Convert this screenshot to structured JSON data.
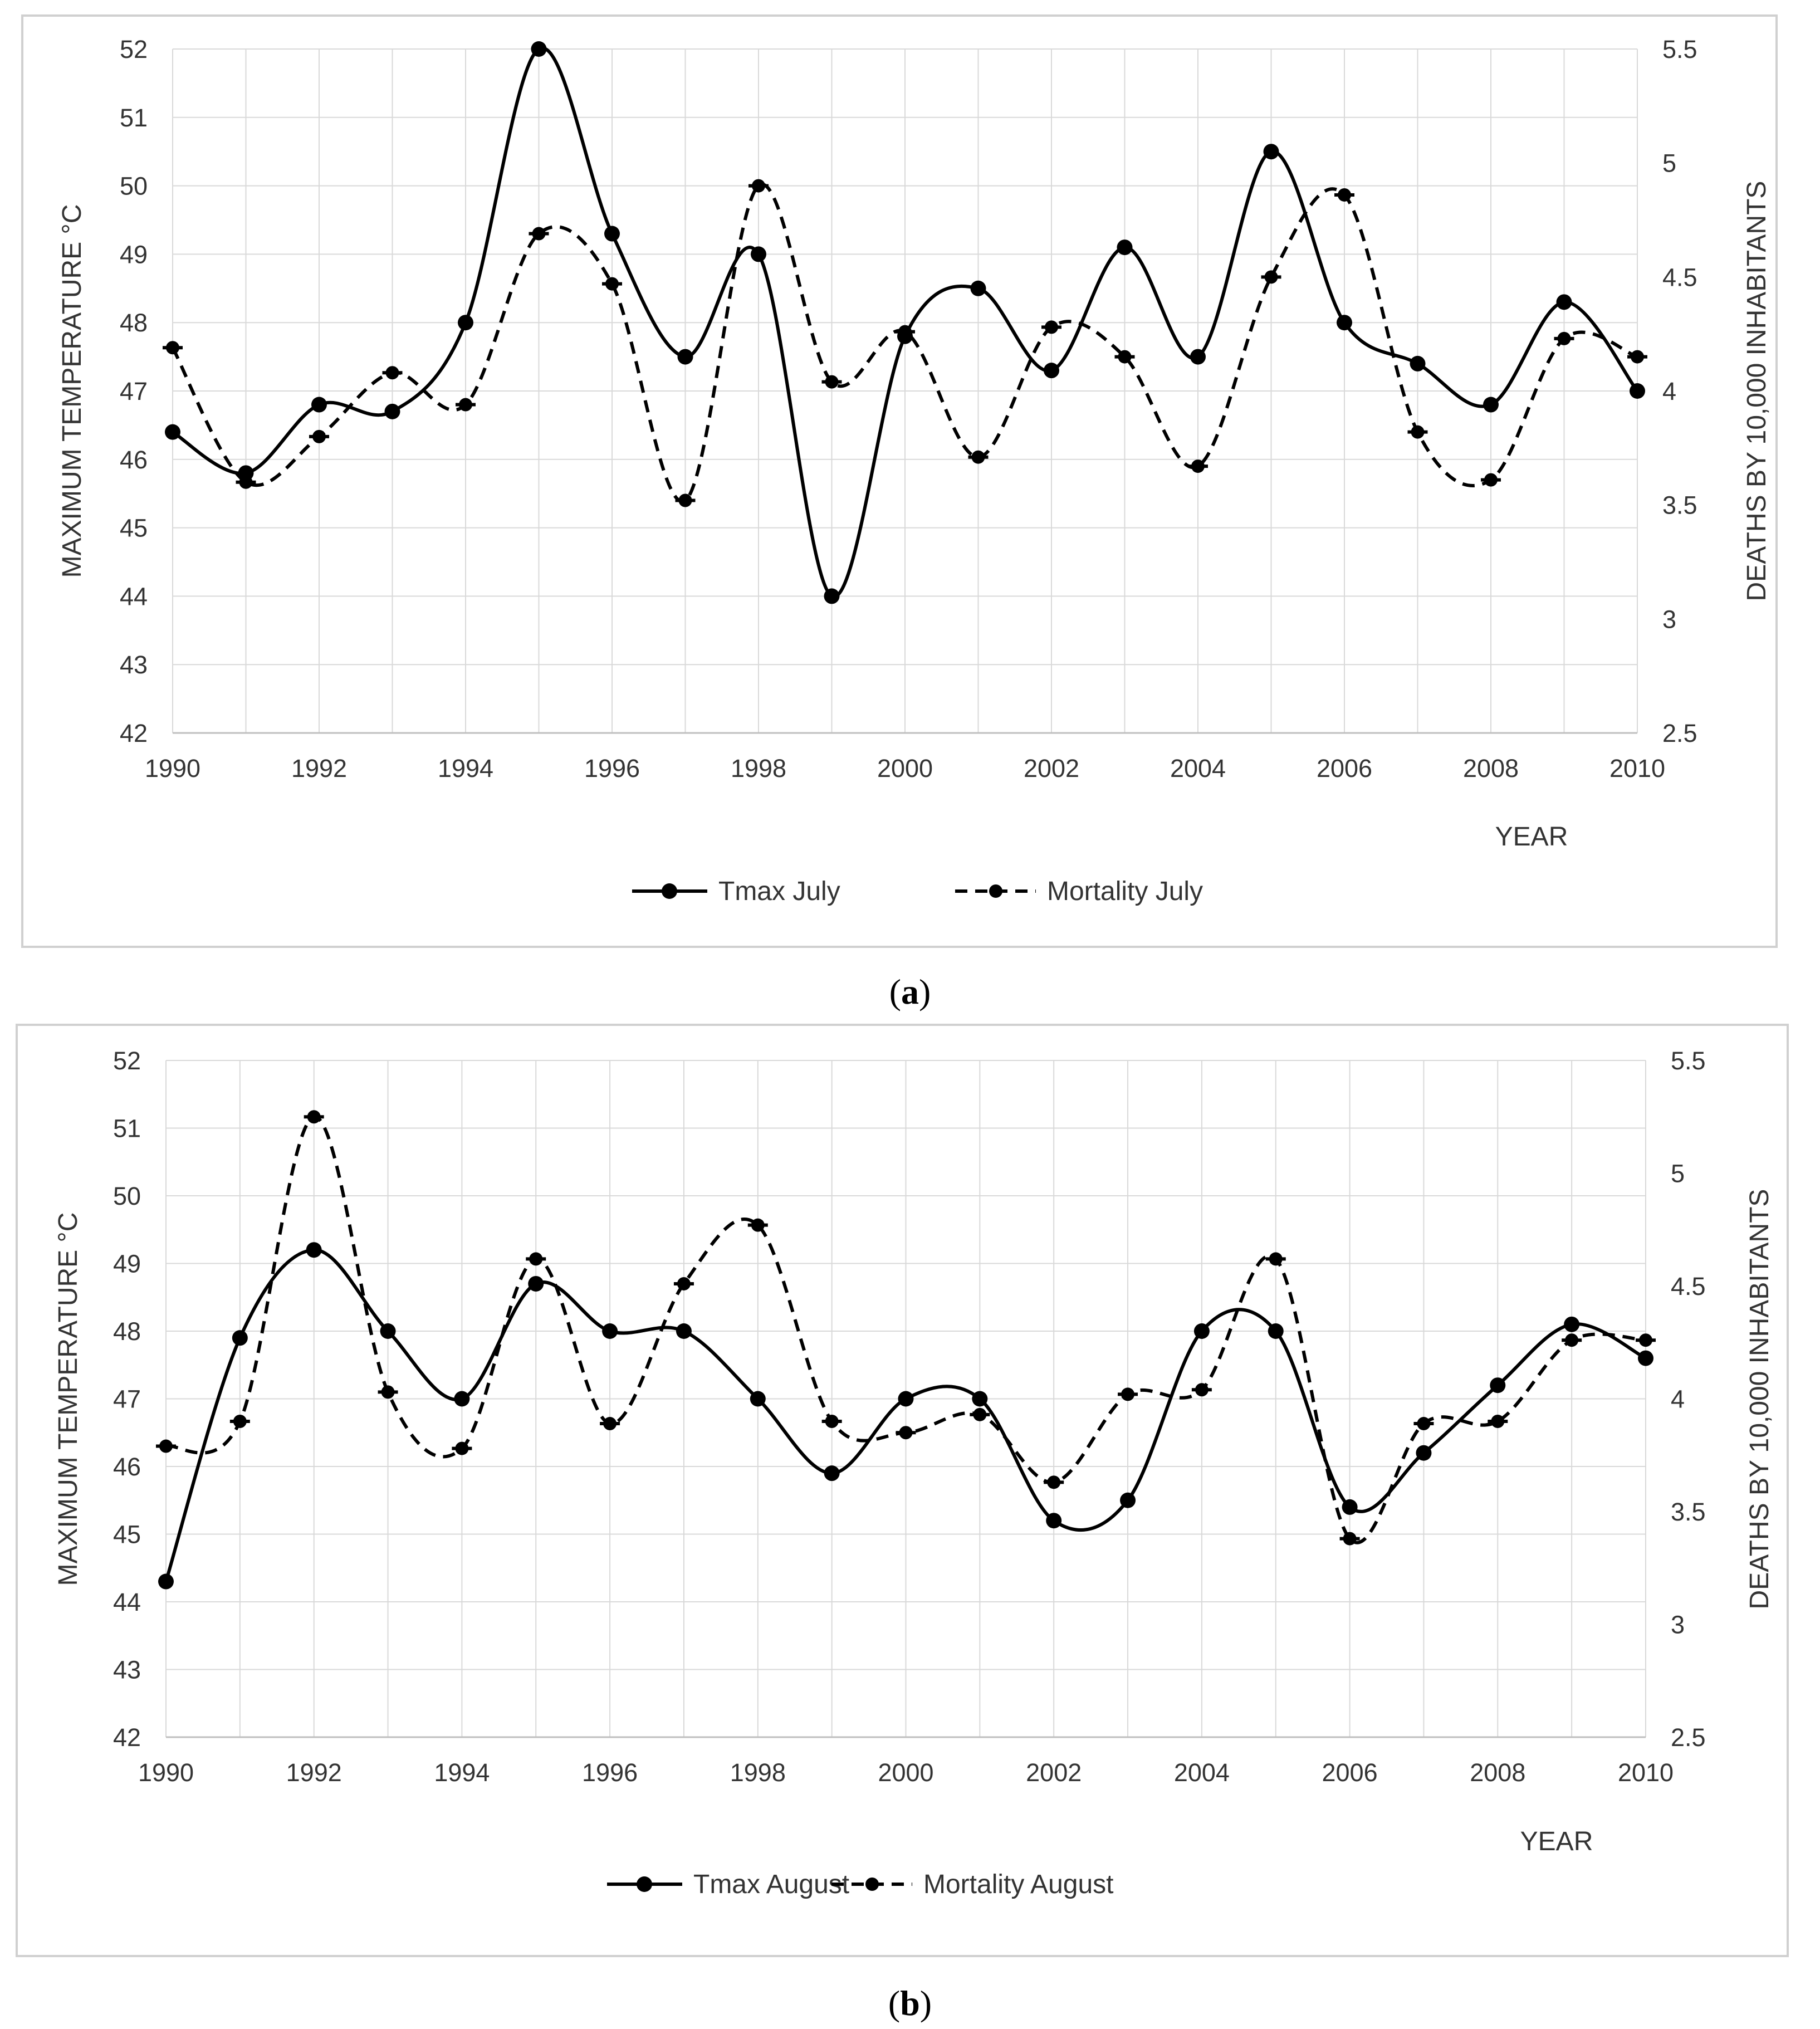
{
  "chart_data": [
    {
      "type": "line",
      "panel_label": "a",
      "caption_open": "(",
      "caption_close": ")",
      "x": [
        1990,
        1991,
        1992,
        1993,
        1994,
        1995,
        1996,
        1997,
        1998,
        1999,
        2000,
        2001,
        2002,
        2003,
        2004,
        2005,
        2006,
        2007,
        2008,
        2009,
        2010
      ],
      "x_tick_labels": [
        "1990",
        "1992",
        "1994",
        "1996",
        "1998",
        "2000",
        "2002",
        "2004",
        "2006",
        "2008",
        "2010"
      ],
      "xlabel": "YEAR",
      "ylabel": "MAXIMUM TEMPERATURE  °C",
      "y2label": "DEATHS BY 10,000 INHABITANTS",
      "ylim": [
        42,
        52
      ],
      "y2lim": [
        2.5,
        5.5
      ],
      "y_tick_labels": [
        "42",
        "43",
        "44",
        "45",
        "46",
        "47",
        "48",
        "49",
        "50",
        "51",
        "52"
      ],
      "y2_tick_labels": [
        "2.5",
        "3",
        "3.5",
        "4",
        "4.5",
        "5",
        "5.5"
      ],
      "series": [
        {
          "name": "Tmax July",
          "axis": "left",
          "style": "solid",
          "values": [
            46.4,
            45.8,
            46.8,
            46.7,
            48.0,
            52.0,
            49.3,
            47.5,
            49.0,
            44.0,
            47.8,
            48.5,
            47.3,
            49.1,
            47.5,
            50.5,
            48.0,
            47.4,
            46.8,
            48.3,
            47.0
          ]
        },
        {
          "name": "Mortality July",
          "axis": "right",
          "style": "dashed",
          "values": [
            4.19,
            3.6,
            3.8,
            4.08,
            3.94,
            4.69,
            4.47,
            3.52,
            4.9,
            4.04,
            4.26,
            3.71,
            4.28,
            4.15,
            3.67,
            4.5,
            4.86,
            3.82,
            3.61,
            4.23,
            4.15
          ]
        }
      ]
    },
    {
      "type": "line",
      "panel_label": "b",
      "caption_open": "(",
      "caption_close": ")",
      "x": [
        1990,
        1991,
        1992,
        1993,
        1994,
        1995,
        1996,
        1997,
        1998,
        1999,
        2000,
        2001,
        2002,
        2003,
        2004,
        2005,
        2006,
        2007,
        2008,
        2009,
        2010
      ],
      "x_tick_labels": [
        "1990",
        "1992",
        "1994",
        "1996",
        "1998",
        "2000",
        "2002",
        "2004",
        "2006",
        "2008",
        "2010"
      ],
      "xlabel": "YEAR",
      "ylabel": "MAXIMUM TEMPERATURE  °C",
      "y2label": "DEATHS BY 10,000 INHABITANTS",
      "ylim": [
        42,
        52
      ],
      "y2lim": [
        2.5,
        5.5
      ],
      "y_tick_labels": [
        "42",
        "43",
        "44",
        "45",
        "46",
        "47",
        "48",
        "49",
        "50",
        "51",
        "52"
      ],
      "y2_tick_labels": [
        "2.5",
        "3",
        "3.5",
        "4",
        "4.5",
        "5",
        "5.5"
      ],
      "series": [
        {
          "name": "Tmax August",
          "axis": "left",
          "style": "solid",
          "values": [
            44.3,
            47.9,
            49.2,
            48.0,
            47.0,
            48.7,
            48.0,
            48.0,
            47.0,
            45.9,
            47.0,
            47.0,
            45.2,
            45.5,
            48.0,
            48.0,
            45.4,
            46.2,
            47.2,
            48.1,
            47.6
          ]
        },
        {
          "name": "Mortality August",
          "axis": "right",
          "style": "dashed",
          "values": [
            3.79,
            3.9,
            5.25,
            4.03,
            3.78,
            4.62,
            3.89,
            4.51,
            4.77,
            3.9,
            3.85,
            3.93,
            3.63,
            4.02,
            4.04,
            4.62,
            3.38,
            3.89,
            3.9,
            4.26,
            4.26
          ]
        }
      ]
    }
  ]
}
